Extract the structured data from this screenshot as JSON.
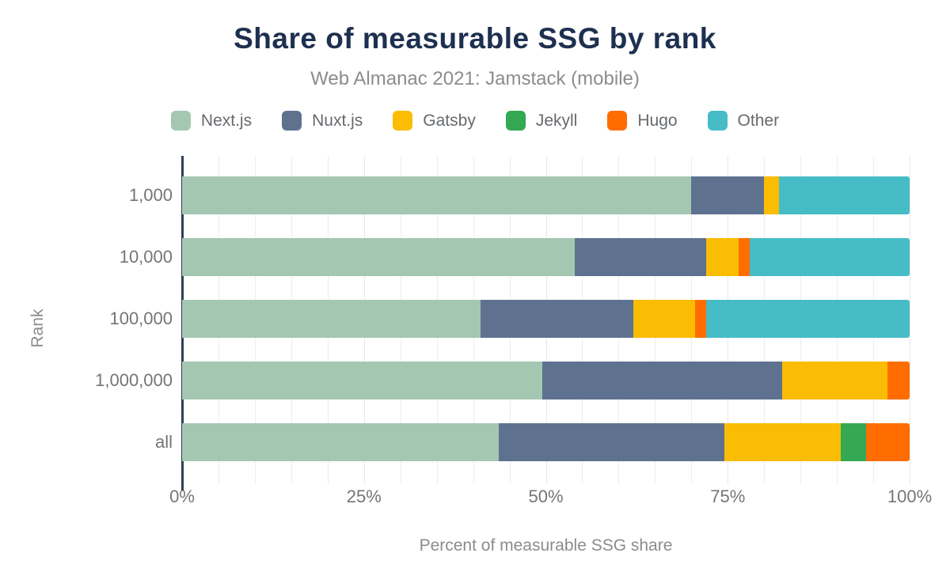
{
  "title": "Share of measurable SSG by rank",
  "subtitle": "Web Almanac 2021: Jamstack (mobile)",
  "colors": {
    "title": "#1e3050",
    "subtitle": "#8c8c8c",
    "axis_text": "#757575",
    "axis_line": "#2e3f54",
    "grid": "#ededed",
    "background": "#ffffff"
  },
  "chart_data": {
    "type": "bar",
    "orientation": "horizontal",
    "stacked": true,
    "unit": "percent",
    "title": "Share of measurable SSG by rank",
    "subtitle": "Web Almanac 2021: Jamstack (mobile)",
    "xlabel": "Percent of measurable SSG share",
    "ylabel": "Rank",
    "xlim": [
      0,
      100
    ],
    "xticks": [
      "0%",
      "25%",
      "50%",
      "75%",
      "100%"
    ],
    "grid": "vertical, minor every 5%",
    "legend_position": "top",
    "categories": [
      "1,000",
      "10,000",
      "100,000",
      "1,000,000",
      "all"
    ],
    "series": [
      {
        "name": "Next.js",
        "color": "#a4c7b1",
        "values": [
          70,
          54,
          41,
          49.5,
          43.5
        ]
      },
      {
        "name": "Nuxt.js",
        "color": "#5e7290",
        "values": [
          10,
          18,
          21,
          33,
          31
        ]
      },
      {
        "name": "Gatsby",
        "color": "#fbbc04",
        "values": [
          2,
          4.5,
          8.5,
          14.5,
          16
        ]
      },
      {
        "name": "Jekyll",
        "color": "#34a853",
        "values": [
          0,
          0,
          0,
          0,
          3.5
        ]
      },
      {
        "name": "Hugo",
        "color": "#ff6d01",
        "values": [
          0,
          1.5,
          1.5,
          3,
          6
        ]
      },
      {
        "name": "Other",
        "color": "#46bdc6",
        "values": [
          18,
          22,
          28,
          0,
          0
        ]
      }
    ]
  }
}
